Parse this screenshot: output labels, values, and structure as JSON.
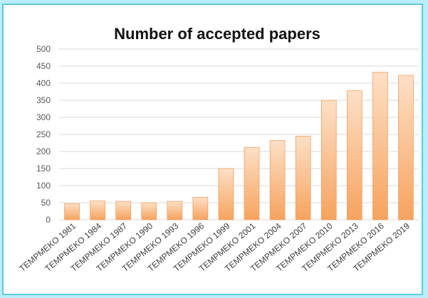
{
  "chart_data": {
    "type": "bar",
    "title": "Number of accepted papers",
    "xlabel": "",
    "ylabel": "",
    "categories": [
      "TEMPMEKO 1981",
      "TEMPMEKO 1984",
      "TEMPMEKO 1987",
      "TEMPMEKO 1990",
      "TEMPMEKO 1993",
      "TEMPMEKO 1996",
      "TEMPMEKO 1999",
      "TEMPMEKO 2001",
      "TEMPMEKO 2004",
      "TEMPMEKO 2007",
      "TEMPMEKO 2010",
      "TEMPMEKO 2013",
      "TEMPMEKO 2016",
      "TEMPMEKO 2019"
    ],
    "values": [
      47,
      55,
      54,
      50,
      54,
      66,
      150,
      212,
      232,
      245,
      350,
      378,
      432,
      423
    ],
    "ylim": [
      0,
      500
    ],
    "yticks": [
      "0",
      "50",
      "100",
      "150",
      "200",
      "250",
      "300",
      "350",
      "400",
      "450",
      "500"
    ],
    "grid": true,
    "legend": "none",
    "colors": {
      "bar_top": "#fde0c6",
      "bar_bottom": "#f6a35e",
      "bar_edge": "#f2a064",
      "grid": "#d9d9d9"
    }
  }
}
